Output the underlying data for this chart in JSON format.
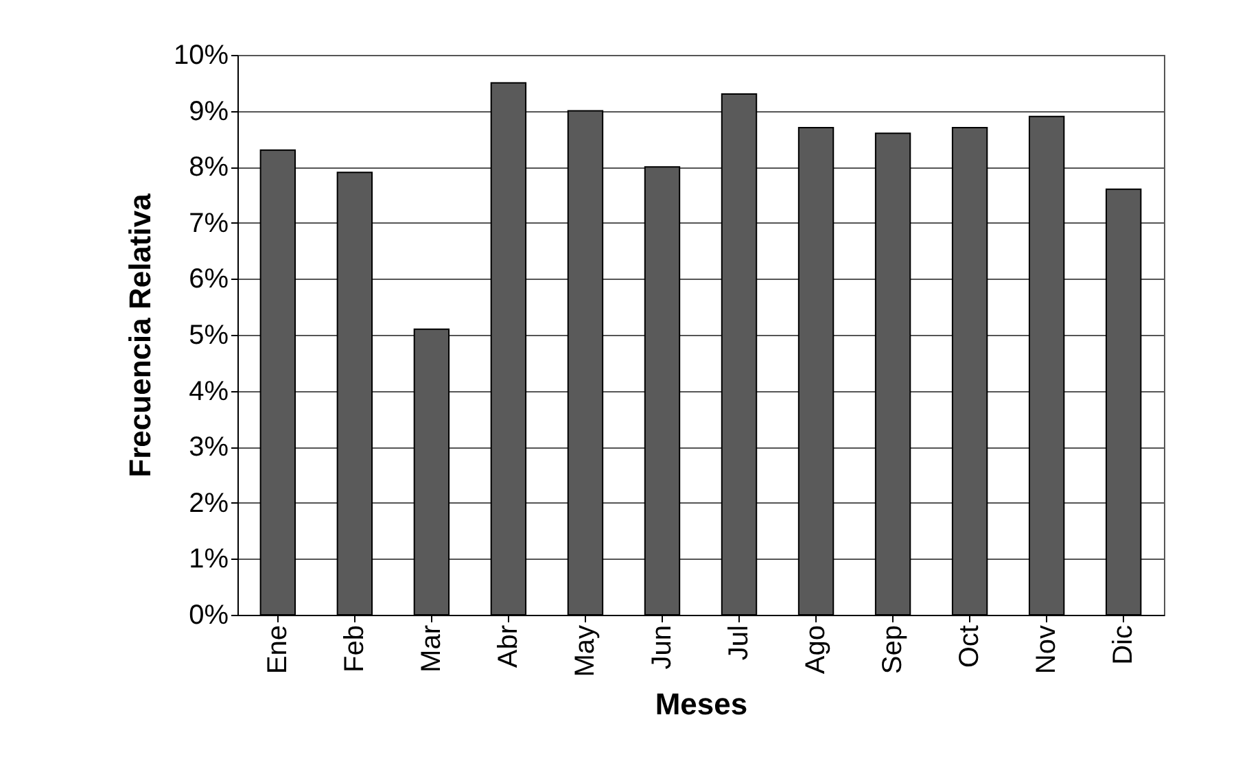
{
  "chart_data": {
    "type": "bar",
    "xlabel": "Meses",
    "ylabel": "Frecuencia Relativa",
    "categories": [
      "Ene",
      "Feb",
      "Mar",
      "Abr",
      "May",
      "Jun",
      "Jul",
      "Ago",
      "Sep",
      "Oct",
      "Nov",
      "Dic"
    ],
    "values": [
      8.3,
      7.9,
      5.1,
      9.5,
      9.0,
      8.0,
      9.3,
      8.7,
      8.6,
      8.7,
      8.9,
      7.6
    ],
    "color": "#5a5a5a",
    "ylim": [
      0,
      10
    ],
    "yticks": [
      {
        "value": 0,
        "label": "0%"
      },
      {
        "value": 1,
        "label": "1%"
      },
      {
        "value": 2,
        "label": "2%"
      },
      {
        "value": 3,
        "label": "3%"
      },
      {
        "value": 4,
        "label": "4%"
      },
      {
        "value": 5,
        "label": "5%"
      },
      {
        "value": 6,
        "label": "6%"
      },
      {
        "value": 7,
        "label": "7%"
      },
      {
        "value": 8,
        "label": "8%"
      },
      {
        "value": 9,
        "label": "9%"
      },
      {
        "value": 10,
        "label": "10%"
      }
    ],
    "grid": "y"
  }
}
